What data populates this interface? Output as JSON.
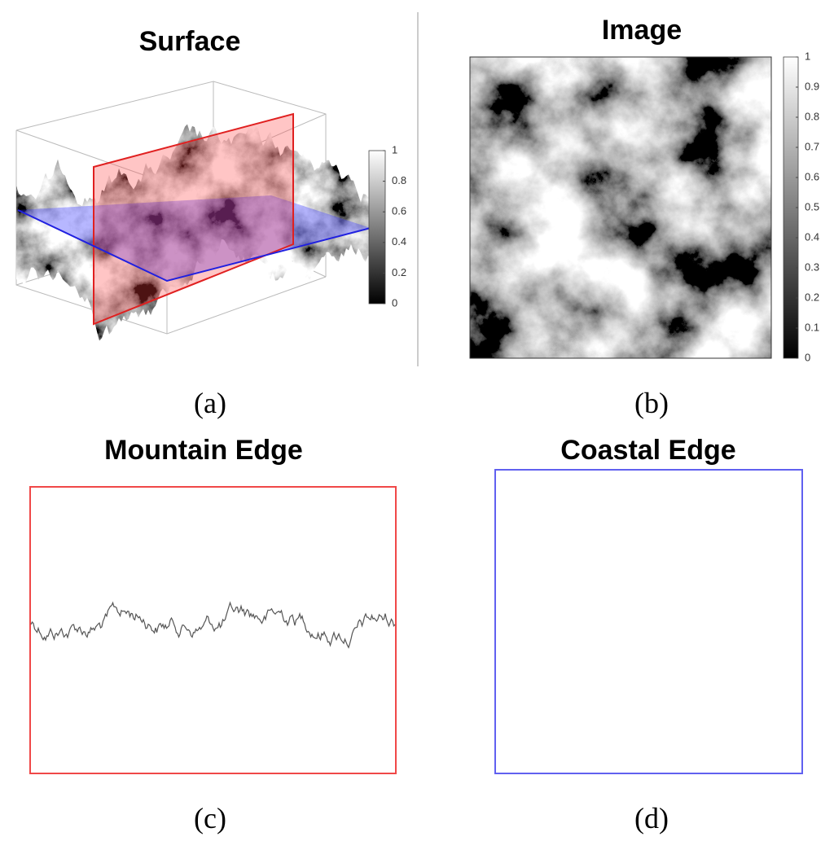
{
  "panels": [
    {
      "title": "Surface",
      "label": "(a)",
      "colorbar": {
        "lim": [
          0,
          1
        ],
        "ticks": [
          0,
          0.2,
          0.4,
          0.6,
          0.8,
          1
        ]
      }
    },
    {
      "title": "Image",
      "label": "(b)",
      "colorbar": {
        "lim": [
          0,
          1
        ],
        "ticks": [
          0,
          0.1,
          0.2,
          0.3,
          0.4,
          0.5,
          0.6,
          0.7,
          0.8,
          0.9,
          1
        ]
      }
    },
    {
      "title": "Mountain Edge",
      "label": "(c)"
    },
    {
      "title": "Coastal Edge",
      "label": "(d)"
    }
  ]
}
